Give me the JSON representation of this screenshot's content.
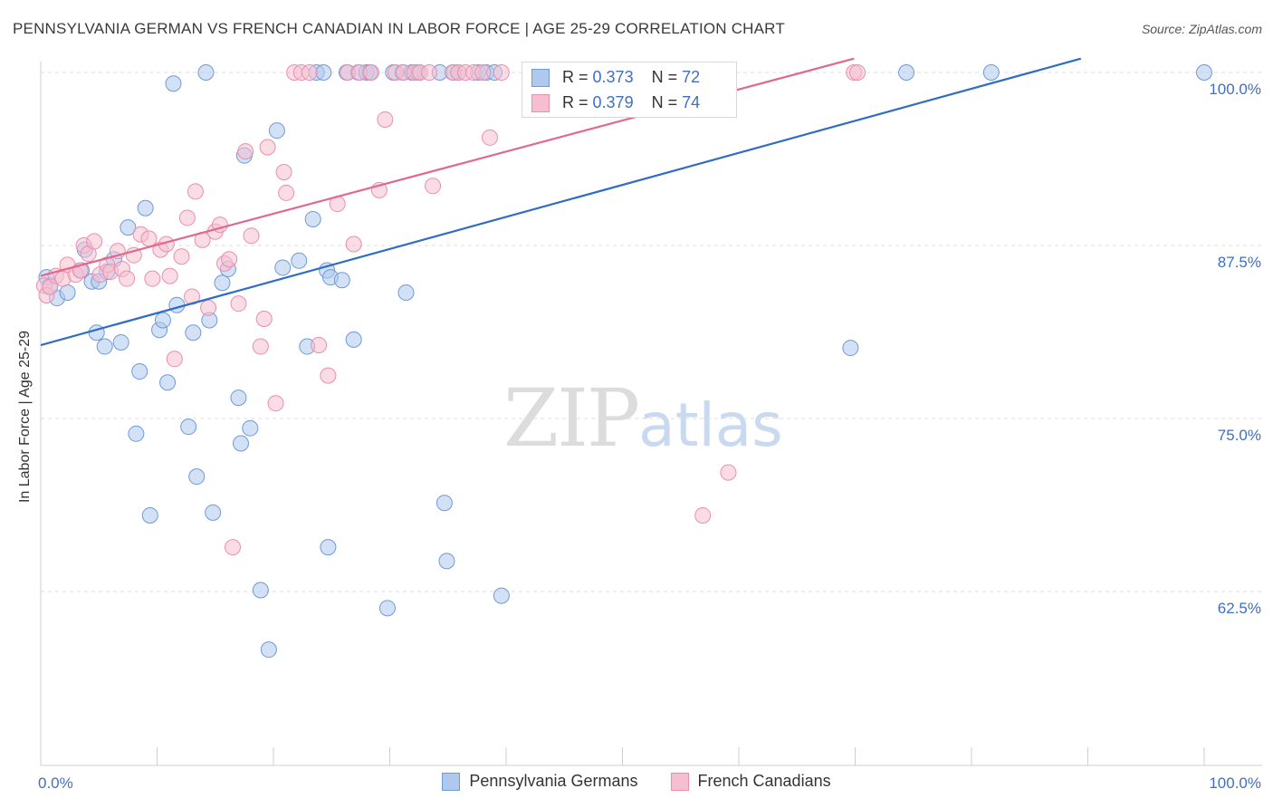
{
  "header": {
    "title": "PENNSYLVANIA GERMAN VS FRENCH CANADIAN IN LABOR FORCE | AGE 25-29 CORRELATION CHART",
    "source": "Source: ZipAtlas.com"
  },
  "watermark": {
    "zip": "ZIP",
    "atlas": "atlas"
  },
  "colors": {
    "blue_fill": "#aec8ee",
    "blue_stroke": "#6f9ad8",
    "blue_line": "#2f6cc4",
    "pink_fill": "#f6bfd0",
    "pink_stroke": "#e98fad",
    "pink_line": "#e06891",
    "tick_label": "#3f6fc4",
    "grid": "#dddddd"
  },
  "stats_box": {
    "rows": [
      {
        "r_label": "R =",
        "r_value": "0.373",
        "n_label": "N =",
        "n_value": "72"
      },
      {
        "r_label": "R =",
        "r_value": "0.379",
        "n_label": "N =",
        "n_value": "74"
      }
    ]
  },
  "legend": {
    "items": [
      {
        "label": "Pennsylvania Germans"
      },
      {
        "label": "French Canadians"
      }
    ]
  },
  "chart_data": {
    "type": "scatter",
    "title": "PENNSYLVANIA GERMAN VS FRENCH CANADIAN IN LABOR FORCE | AGE 25-29 CORRELATION CHART",
    "xlabel": "",
    "ylabel": "In Labor Force | Age 25-29",
    "xlim": [
      0,
      105
    ],
    "ylim": [
      50.5,
      101.8
    ],
    "x_tick_labels": [
      {
        "value": 0,
        "label": "0.0%"
      },
      {
        "value": 100,
        "label": "100.0%"
      }
    ],
    "x_minor_ticks": [
      0,
      10,
      20,
      30,
      40,
      50,
      60,
      70,
      80,
      90,
      100
    ],
    "y_ticks": [
      {
        "value": 100,
        "label": "100.0%"
      },
      {
        "value": 87.5,
        "label": "87.5%"
      },
      {
        "value": 75,
        "label": "75.0%"
      },
      {
        "value": 62.5,
        "label": "62.5%"
      }
    ],
    "grid": true,
    "series": [
      {
        "name": "Pennsylvania Germans",
        "r": 0.373,
        "n": 72,
        "trend": {
          "x0": 0,
          "y0": 80.3,
          "x1": 89.4,
          "y1": 101.0
        },
        "points": [
          [
            0.5,
            85.2
          ],
          [
            0.8,
            84.6
          ],
          [
            1.4,
            83.7
          ],
          [
            2.3,
            84.1
          ],
          [
            3.5,
            85.7
          ],
          [
            3.8,
            87.2
          ],
          [
            4.4,
            84.9
          ],
          [
            4.8,
            81.2
          ],
          [
            5.0,
            84.9
          ],
          [
            5.5,
            80.2
          ],
          [
            5.7,
            85.6
          ],
          [
            6.3,
            86.5
          ],
          [
            6.9,
            80.5
          ],
          [
            7.5,
            88.8
          ],
          [
            8.2,
            73.9
          ],
          [
            8.5,
            78.4
          ],
          [
            9.0,
            90.2
          ],
          [
            9.4,
            68.0
          ],
          [
            10.2,
            81.4
          ],
          [
            10.5,
            82.1
          ],
          [
            10.9,
            77.6
          ],
          [
            11.4,
            99.2
          ],
          [
            11.7,
            83.2
          ],
          [
            12.7,
            74.4
          ],
          [
            13.1,
            81.2
          ],
          [
            13.4,
            70.8
          ],
          [
            14.2,
            100.0
          ],
          [
            14.5,
            82.1
          ],
          [
            14.8,
            68.2
          ],
          [
            15.6,
            84.8
          ],
          [
            16.1,
            85.8
          ],
          [
            17.2,
            73.2
          ],
          [
            17.0,
            76.5
          ],
          [
            17.5,
            94.0
          ],
          [
            18.0,
            74.3
          ],
          [
            18.9,
            62.6
          ],
          [
            19.6,
            58.3
          ],
          [
            20.3,
            95.8
          ],
          [
            20.8,
            85.9
          ],
          [
            22.2,
            86.4
          ],
          [
            22.9,
            80.2
          ],
          [
            23.4,
            89.4
          ],
          [
            23.7,
            100.0
          ],
          [
            24.3,
            100.0
          ],
          [
            24.6,
            85.7
          ],
          [
            24.9,
            85.2
          ],
          [
            24.7,
            65.7
          ],
          [
            25.9,
            85.0
          ],
          [
            26.3,
            100.0
          ],
          [
            26.9,
            80.7
          ],
          [
            27.3,
            100.0
          ],
          [
            28.0,
            100.0
          ],
          [
            28.3,
            100.0
          ],
          [
            29.8,
            61.3
          ],
          [
            30.3,
            100.0
          ],
          [
            31.1,
            100.0
          ],
          [
            31.4,
            84.1
          ],
          [
            31.9,
            100.0
          ],
          [
            32.4,
            100.0
          ],
          [
            34.3,
            100.0
          ],
          [
            34.7,
            68.9
          ],
          [
            34.9,
            64.7
          ],
          [
            35.5,
            100.0
          ],
          [
            35.9,
            100.0
          ],
          [
            37.6,
            100.0
          ],
          [
            38.3,
            100.0
          ],
          [
            39.6,
            62.2
          ],
          [
            39.0,
            100.0
          ],
          [
            69.6,
            80.1
          ],
          [
            74.4,
            100.0
          ],
          [
            81.7,
            100.0
          ],
          [
            100.0,
            100.0
          ]
        ]
      },
      {
        "name": "French Canadians",
        "r": 0.379,
        "n": 74,
        "trend": {
          "x0": 0,
          "y0": 85.3,
          "x1": 69.9,
          "y1": 101.0
        },
        "points": [
          [
            0.3,
            84.6
          ],
          [
            0.5,
            83.9
          ],
          [
            0.8,
            84.5
          ],
          [
            1.3,
            85.3
          ],
          [
            1.9,
            85.1
          ],
          [
            2.3,
            86.1
          ],
          [
            3.0,
            85.4
          ],
          [
            3.4,
            85.7
          ],
          [
            3.7,
            87.5
          ],
          [
            4.1,
            86.9
          ],
          [
            4.6,
            87.8
          ],
          [
            5.1,
            85.4
          ],
          [
            5.7,
            86.1
          ],
          [
            6.0,
            85.6
          ],
          [
            6.6,
            87.1
          ],
          [
            7.0,
            85.8
          ],
          [
            7.4,
            85.1
          ],
          [
            8.0,
            86.8
          ],
          [
            8.6,
            88.3
          ],
          [
            9.3,
            88.0
          ],
          [
            9.6,
            85.1
          ],
          [
            10.3,
            87.2
          ],
          [
            10.8,
            87.6
          ],
          [
            11.1,
            85.3
          ],
          [
            11.5,
            79.3
          ],
          [
            12.1,
            86.7
          ],
          [
            12.6,
            89.5
          ],
          [
            13.0,
            83.8
          ],
          [
            13.3,
            91.4
          ],
          [
            13.9,
            87.9
          ],
          [
            14.4,
            83.0
          ],
          [
            15.0,
            88.5
          ],
          [
            15.4,
            89.0
          ],
          [
            15.8,
            86.2
          ],
          [
            16.2,
            86.5
          ],
          [
            16.5,
            65.7
          ],
          [
            17.0,
            83.3
          ],
          [
            17.6,
            94.3
          ],
          [
            18.1,
            88.2
          ],
          [
            18.9,
            80.2
          ],
          [
            19.2,
            82.2
          ],
          [
            19.5,
            94.6
          ],
          [
            20.2,
            76.1
          ],
          [
            20.9,
            92.8
          ],
          [
            21.1,
            91.3
          ],
          [
            21.8,
            100.0
          ],
          [
            22.4,
            100.0
          ],
          [
            23.1,
            100.0
          ],
          [
            23.9,
            80.3
          ],
          [
            24.7,
            78.1
          ],
          [
            25.5,
            90.5
          ],
          [
            26.4,
            100.0
          ],
          [
            26.9,
            87.6
          ],
          [
            27.4,
            100.0
          ],
          [
            28.4,
            100.0
          ],
          [
            29.1,
            91.5
          ],
          [
            29.6,
            96.6
          ],
          [
            30.5,
            100.0
          ],
          [
            31.2,
            100.0
          ],
          [
            32.1,
            100.0
          ],
          [
            32.6,
            100.0
          ],
          [
            33.4,
            100.0
          ],
          [
            33.7,
            91.8
          ],
          [
            35.4,
            100.0
          ],
          [
            35.9,
            100.0
          ],
          [
            36.5,
            100.0
          ],
          [
            37.2,
            100.0
          ],
          [
            38.0,
            100.0
          ],
          [
            38.6,
            95.3
          ],
          [
            39.6,
            100.0
          ],
          [
            56.9,
            68.0
          ],
          [
            59.1,
            71.1
          ],
          [
            69.9,
            100.0
          ],
          [
            70.2,
            100.0
          ]
        ]
      }
    ]
  }
}
